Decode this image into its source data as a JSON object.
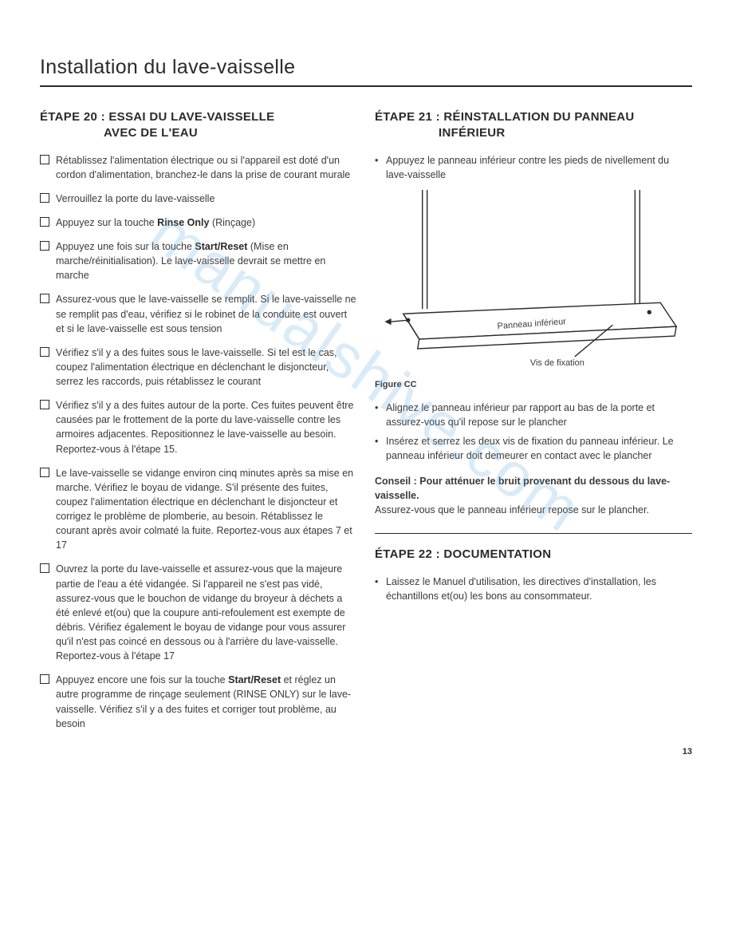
{
  "page_title": "Installation du lave-vaisselle",
  "page_number": "13",
  "watermark_text": "manualshive.com",
  "left": {
    "step_title_line1": "ÉTAPE 20 : ESSAI DU LAVE-VAISSELLE",
    "step_title_line2": "AVEC DE L'EAU",
    "checks": [
      "Rétablissez l'alimentation électrique ou si l'appareil est doté d'un cordon d'alimentation, branchez-le dans la prise de courant murale",
      "Verrouillez la porte du lave-vaisselle",
      "Appuyez sur la touche <strong>Rinse Only</strong> (Rinçage)",
      "Appuyez une fois sur la touche <strong>Start/Reset</strong> (Mise en marche/réinitialisation). Le lave-vaisselle devrait se mettre en marche",
      "Assurez-vous que le lave-vaisselle se remplit. Si le lave-vaisselle ne se remplit pas d'eau, vérifiez si le robinet de la conduite est ouvert et si le lave-vaisselle est sous tension",
      "Vérifiez s'il y a des fuites sous le lave-vaisselle. Si tel est le cas, coupez l'alimentation électrique en déclenchant le disjoncteur, serrez les raccords, puis rétablissez le courant",
      "Vérifiez s'il y a des fuites autour de la porte. Ces fuites peuvent être causées par le frottement de la porte du lave-vaisselle contre les armoires adjacentes. Repositionnez le lave-vaisselle au besoin. Reportez-vous à l'étape 15.",
      "Le lave-vaisselle se vidange environ cinq minutes après sa mise en marche. Vérifiez le boyau de vidange. S'il présente des fuites, coupez l'alimentation électrique en déclenchant le disjoncteur et corrigez le problème de plomberie, au besoin. Rétablissez le courant après avoir colmaté la fuite. Reportez-vous aux étapes 7 et 17",
      "Ouvrez la porte du lave-vaisselle et assurez-vous que la majeure partie de l'eau a été vidangée. Si l'appareil ne s'est pas vidé, assurez-vous que le bouchon de vidange du broyeur à déchets a été enlevé et(ou) que la coupure anti-refoulement est exempte de débris. Vérifiez également le boyau de vidange pour vous assurer qu'il n'est pas coincé en dessous ou à l'arrière du lave-vaisselle. Reportez-vous à l'étape 17",
      "Appuyez encore une fois sur la touche <strong>Start/Reset</strong> et réglez un autre programme de rinçage seulement (RINSE ONLY) sur le lave-vaisselle. Vérifiez s'il y a des fuites et corriger tout problème, au besoin"
    ]
  },
  "right": {
    "step21_title_line1": "ÉTAPE 21 : RÉINSTALLATION DU PANNEAU",
    "step21_title_line2": "INFÉRIEUR",
    "step21_top_bullets": [
      "Appuyez le panneau inférieur contre les pieds de nivellement du lave-vaisselle"
    ],
    "figure": {
      "caption": "Figure CC",
      "label_panel": "Panneau inférieur",
      "label_screw": "Vis de fixation"
    },
    "step21_bottom_bullets": [
      "Alignez le panneau inférieur par rapport au bas de la porte et assurez-vous qu'il repose sur le plancher",
      "Insérez et serrez les deux vis de fixation du panneau inférieur. Le panneau inférieur doit demeurer en contact avec le plancher"
    ],
    "tip_lead": "Conseil : Pour atténuer le bruit provenant du dessous du lave-vaisselle.",
    "tip_body": "Assurez-vous que le panneau inférieur repose sur le plancher.",
    "step22_title": "ÉTAPE 22 : DOCUMENTATION",
    "step22_bullets": [
      "Laissez le Manuel d'utilisation, les directives d'installation, les échantillons et(ou) les bons au consommateur."
    ]
  },
  "colors": {
    "text": "#2a2a2a",
    "body": "#3a3a3a",
    "watermark": "#5da8e0",
    "background": "#ffffff"
  }
}
